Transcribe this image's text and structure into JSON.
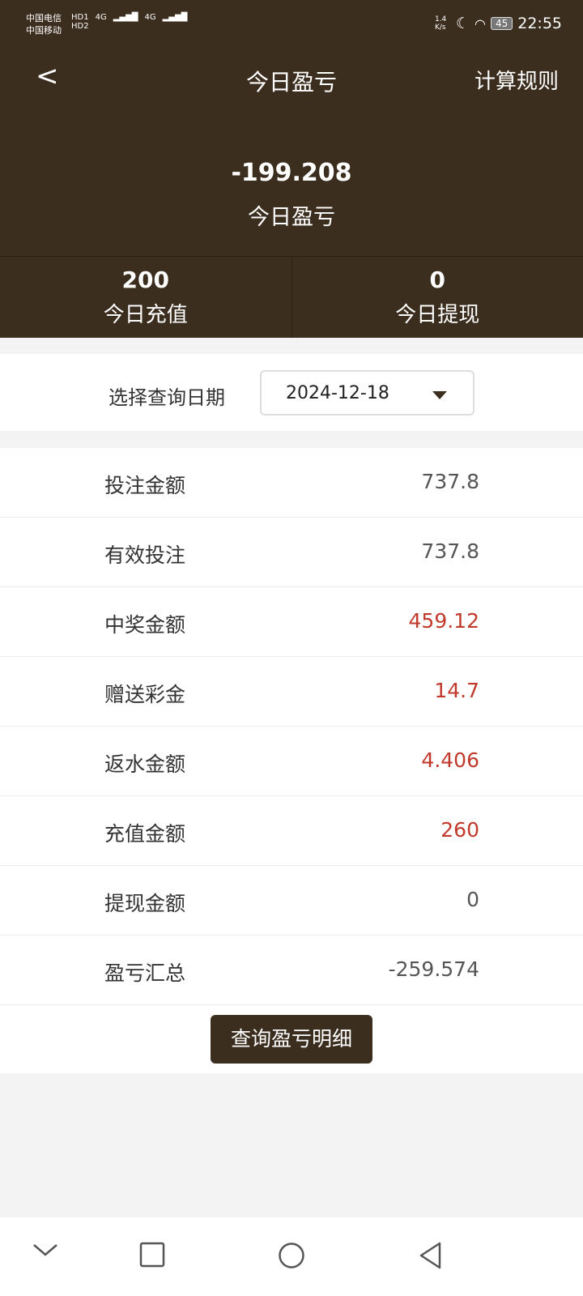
{
  "status_bar": {
    "carrier1": "中国电信",
    "carrier2": "中国移动",
    "hd1": "HD1",
    "hd2": "HD2",
    "net1": "4G",
    "net2": "4G",
    "speed": "1.4 K/s",
    "battery": "45",
    "time": "22:55"
  },
  "header": {
    "title": "今日盈亏",
    "rules_label": "计算规则"
  },
  "summary": {
    "value": "-199.208",
    "label": "今日盈亏"
  },
  "stats": [
    {
      "value": "200",
      "label": "今日充值"
    },
    {
      "value": "0",
      "label": "今日提现"
    }
  ],
  "date_filter": {
    "label": "选择查询日期",
    "value": "2024-12-18"
  },
  "rows": [
    {
      "label": "投注金额",
      "value": "737.8",
      "highlight": false
    },
    {
      "label": "有效投注",
      "value": "737.8",
      "highlight": false
    },
    {
      "label": "中奖金额",
      "value": "459.12",
      "highlight": true
    },
    {
      "label": "赠送彩金",
      "value": "14.7",
      "highlight": true
    },
    {
      "label": "返水金额",
      "value": "4.406",
      "highlight": true
    },
    {
      "label": "充值金额",
      "value": "260",
      "highlight": true
    },
    {
      "label": "提现金额",
      "value": "0",
      "highlight": false
    },
    {
      "label": "盈亏汇总",
      "value": "-259.574",
      "highlight": false
    }
  ],
  "detail_button": "查询盈亏明细",
  "colors": {
    "header_bg": "#3c2e1f",
    "highlight": "#c0392b"
  }
}
